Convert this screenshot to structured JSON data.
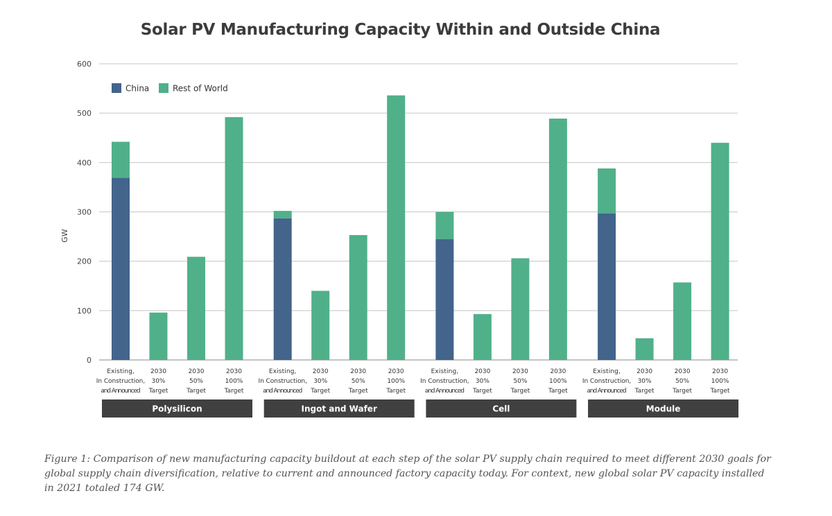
{
  "chart_data": {
    "type": "bar",
    "stacked": true,
    "title": "Solar PV Manufacturing Capacity Within and Outside China",
    "ylabel": "GW",
    "ylim": [
      0,
      600
    ],
    "yticks": [
      0,
      100,
      200,
      300,
      400,
      500,
      600
    ],
    "grid": true,
    "legend_position": "top-left",
    "groups": [
      "Polysilicon",
      "Ingot and Wafer",
      "Cell",
      "Module"
    ],
    "categories": [
      [
        "Existing,",
        "In Construction,",
        "and Announced"
      ],
      [
        "2030",
        "30%",
        "Target"
      ],
      [
        "2030",
        "50%",
        "Target"
      ],
      [
        "2030",
        "100%",
        "Target"
      ]
    ],
    "series": [
      {
        "name": "China",
        "color": "#43648b",
        "values": [
          [
            369,
            0,
            0,
            0
          ],
          [
            287,
            0,
            0,
            0
          ],
          [
            245,
            0,
            0,
            0
          ],
          [
            297,
            0,
            0,
            0
          ]
        ]
      },
      {
        "name": "Rest of World",
        "color": "#50b08a",
        "values": [
          [
            73,
            96,
            209,
            492
          ],
          [
            15,
            140,
            253,
            536
          ],
          [
            55,
            93,
            206,
            489
          ],
          [
            91,
            44,
            157,
            440
          ]
        ]
      }
    ]
  },
  "caption": "Figure 1: Comparison of new manufacturing capacity buildout at each step of the solar PV supply chain required to meet different 2030 goals for global supply chain diversification, relative to current and announced factory capacity today. For context, new global solar PV capacity installed in 2021 totaled 174 GW."
}
